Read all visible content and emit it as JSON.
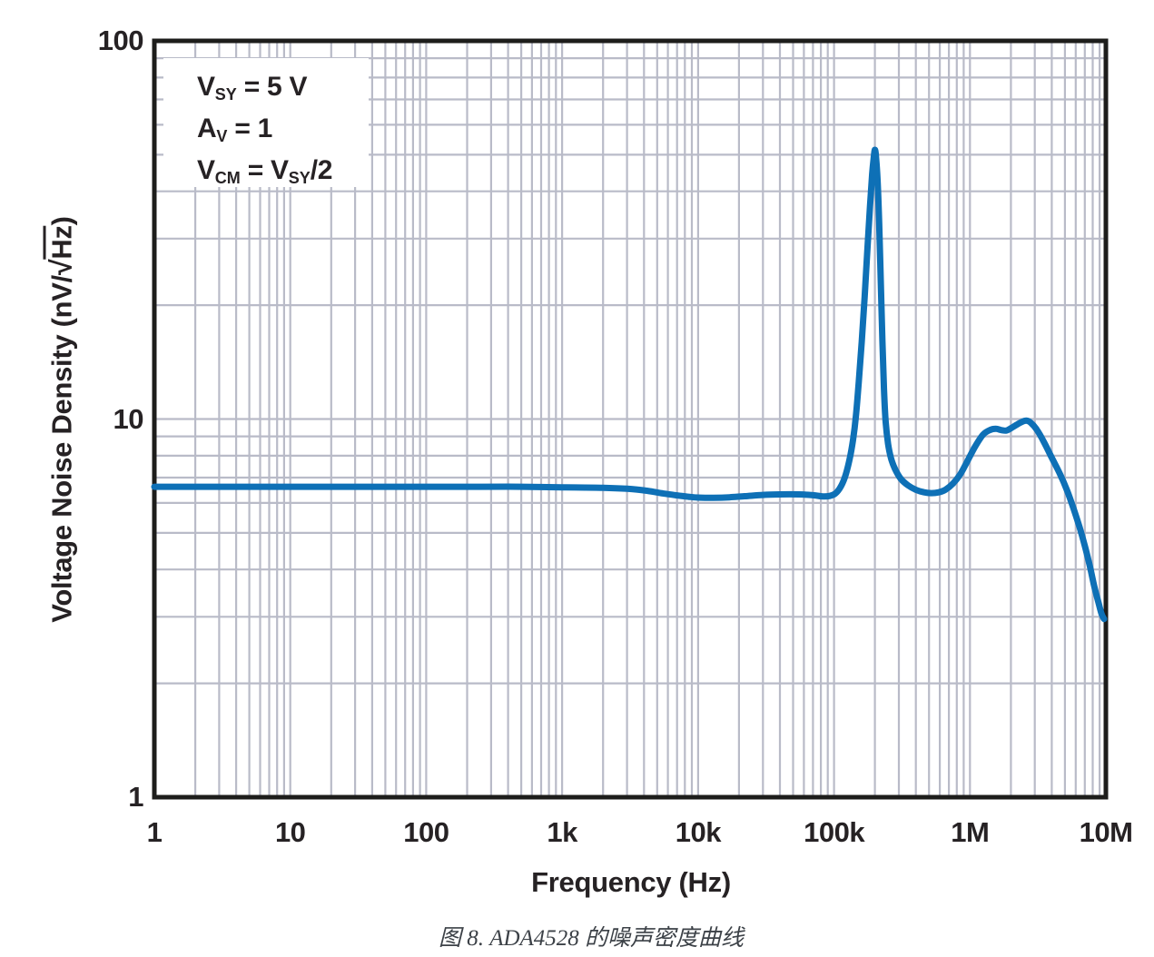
{
  "figure": {
    "caption": "图 8. ADA4528 的噪声密度曲线"
  },
  "axes": {
    "x_title": "Frequency (Hz)",
    "y_title_pre": "Voltage Noise Density (nV/",
    "y_title_sqrt": "√",
    "y_title_sqrt_arg": "Hz",
    "y_title_close": ")"
  },
  "annotation": {
    "l1": {
      "a": "V",
      "sub": "SY",
      "b": " = 5 V"
    },
    "l2": {
      "a": "A",
      "sub": "V",
      "b": " = 1"
    },
    "l3": {
      "a": "V",
      "sub": "CM",
      "b": " = V",
      "sub2": "SY",
      "c": "/2"
    }
  },
  "colors": {
    "curve": "#0e70b6",
    "grid": "#b9bbc8",
    "frame": "#1d1d1b",
    "text": "#262224"
  },
  "chart_data": {
    "type": "line",
    "title": "",
    "xlabel": "Frequency (Hz)",
    "ylabel": "Voltage Noise Density (nV/√Hz)",
    "x_scale": "log",
    "y_scale": "log",
    "xlim": [
      1,
      10000000
    ],
    "ylim": [
      1,
      100
    ],
    "grid": "log major and minor gridlines, full box frame",
    "legend": "none",
    "annotations": [
      "VSY = 5 V",
      "AV = 1",
      "VCM = VSY/2"
    ],
    "x_ticks": {
      "values": [
        1,
        10,
        100,
        1000,
        10000,
        100000,
        1000000,
        10000000
      ],
      "labels": [
        "1",
        "10",
        "100",
        "1k",
        "10k",
        "100k",
        "1M",
        "10M"
      ]
    },
    "y_ticks": {
      "values": [
        1,
        10,
        100
      ],
      "labels": [
        "1",
        "10",
        "100"
      ]
    },
    "series": [
      {
        "name": "voltage-noise-density",
        "color": "#0e70b6",
        "points": [
          [
            1,
            6.62
          ],
          [
            2,
            6.62
          ],
          [
            4,
            6.62
          ],
          [
            8,
            6.62
          ],
          [
            15,
            6.62
          ],
          [
            30,
            6.62
          ],
          [
            60,
            6.62
          ],
          [
            120,
            6.62
          ],
          [
            250,
            6.62
          ],
          [
            500,
            6.62
          ],
          [
            1000,
            6.6
          ],
          [
            2000,
            6.58
          ],
          [
            3000,
            6.54
          ],
          [
            4200,
            6.46
          ],
          [
            5500,
            6.36
          ],
          [
            7000,
            6.28
          ],
          [
            8500,
            6.23
          ],
          [
            10000,
            6.2
          ],
          [
            13000,
            6.19
          ],
          [
            17000,
            6.21
          ],
          [
            22000,
            6.25
          ],
          [
            30000,
            6.3
          ],
          [
            40000,
            6.32
          ],
          [
            55000,
            6.32
          ],
          [
            70000,
            6.29
          ],
          [
            85000,
            6.24
          ],
          [
            100000,
            6.32
          ],
          [
            110000,
            6.55
          ],
          [
            120000,
            7.0
          ],
          [
            130000,
            7.8
          ],
          [
            138000,
            8.8
          ],
          [
            145000,
            10.2
          ],
          [
            152000,
            12.5
          ],
          [
            160000,
            16
          ],
          [
            168000,
            21
          ],
          [
            176000,
            28
          ],
          [
            184000,
            36.5
          ],
          [
            191000,
            44.5
          ],
          [
            196000,
            49
          ],
          [
            200000,
            51.5
          ],
          [
            204000,
            49
          ],
          [
            209000,
            43
          ],
          [
            215000,
            33
          ],
          [
            221000,
            23
          ],
          [
            227000,
            16
          ],
          [
            233000,
            12
          ],
          [
            240000,
            9.8
          ],
          [
            250000,
            8.6
          ],
          [
            262000,
            7.9
          ],
          [
            280000,
            7.4
          ],
          [
            310000,
            6.95
          ],
          [
            350000,
            6.68
          ],
          [
            400000,
            6.5
          ],
          [
            460000,
            6.4
          ],
          [
            520000,
            6.37
          ],
          [
            590000,
            6.4
          ],
          [
            660000,
            6.5
          ],
          [
            750000,
            6.75
          ],
          [
            850000,
            7.15
          ],
          [
            950000,
            7.7
          ],
          [
            1100000,
            8.5
          ],
          [
            1250000,
            9.1
          ],
          [
            1400000,
            9.35
          ],
          [
            1550000,
            9.42
          ],
          [
            1700000,
            9.35
          ],
          [
            1850000,
            9.32
          ],
          [
            2000000,
            9.45
          ],
          [
            2200000,
            9.65
          ],
          [
            2400000,
            9.82
          ],
          [
            2600000,
            9.9
          ],
          [
            2800000,
            9.78
          ],
          [
            3100000,
            9.38
          ],
          [
            3500000,
            8.7
          ],
          [
            4000000,
            7.9
          ],
          [
            4600000,
            7.15
          ],
          [
            5200000,
            6.45
          ],
          [
            5800000,
            5.78
          ],
          [
            6400000,
            5.18
          ],
          [
            7000000,
            4.62
          ],
          [
            7600000,
            4.1
          ],
          [
            8200000,
            3.62
          ],
          [
            8800000,
            3.28
          ],
          [
            9300000,
            3.05
          ],
          [
            9700000,
            2.96
          ]
        ]
      }
    ]
  }
}
